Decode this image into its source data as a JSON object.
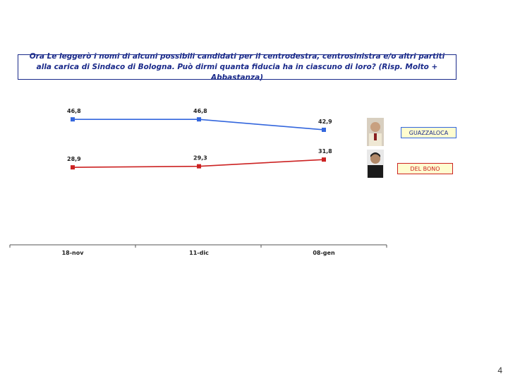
{
  "title": "Ora Le leggerò i nomi di alcuni possibili candidati per il centrodestra, centrosinistra e/o altri partiti alla carica di Sindaco di Bologna. Può dirmi quanta fiducia ha in ciascuno di loro? (Risp. Molto + Abbastanza)",
  "page_number": "4",
  "chart_data": {
    "type": "line",
    "categories": [
      "18-nov",
      "11-dic",
      "08-gen"
    ],
    "series": [
      {
        "name": "GUAZZALOCA",
        "values": [
          46.8,
          46.8,
          42.9
        ],
        "labels": [
          "46,8",
          "46,8",
          "42,9"
        ],
        "color": "#3366dd"
      },
      {
        "name": "DEL BONO",
        "values": [
          28.9,
          29.3,
          31.8
        ],
        "labels": [
          "28,9",
          "29,3",
          "31,8"
        ],
        "color": "#cc2222"
      }
    ],
    "legend": "right",
    "grid": false
  }
}
